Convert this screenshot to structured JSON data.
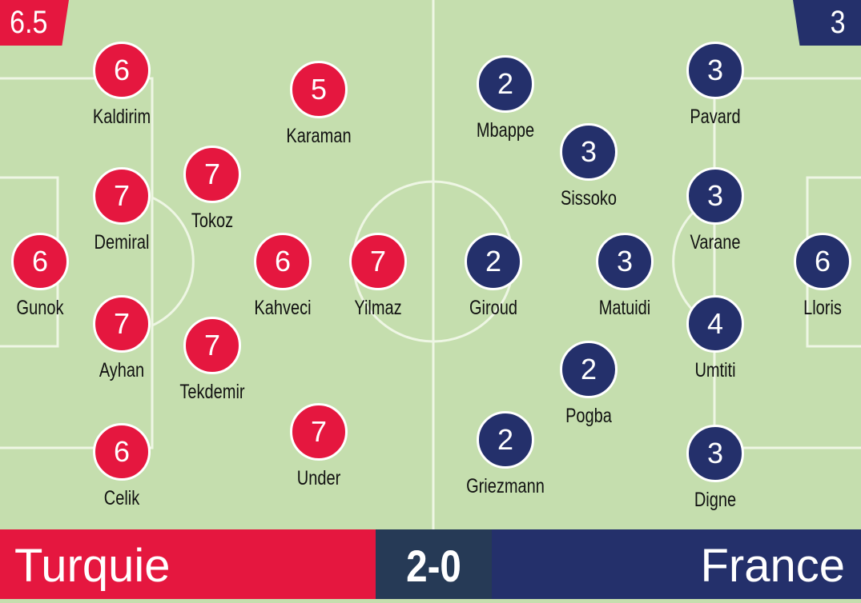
{
  "colors": {
    "pitch": "#c5deae",
    "home": "#e5173f",
    "away": "#24306b",
    "score_bg": "#263a56",
    "lines": "#eef6e4"
  },
  "home": {
    "name": "Turquie",
    "rating": "6.5",
    "players": [
      {
        "name": "Kaldirim",
        "rating": "6"
      },
      {
        "name": "Karaman",
        "rating": "5"
      },
      {
        "name": "Tokoz",
        "rating": "7"
      },
      {
        "name": "Demiral",
        "rating": "7"
      },
      {
        "name": "Gunok",
        "rating": "6"
      },
      {
        "name": "Kahveci",
        "rating": "6"
      },
      {
        "name": "Yilmaz",
        "rating": "7"
      },
      {
        "name": "Ayhan",
        "rating": "7"
      },
      {
        "name": "Tekdemir",
        "rating": "7"
      },
      {
        "name": "Under",
        "rating": "7"
      },
      {
        "name": "Celik",
        "rating": "6"
      }
    ]
  },
  "away": {
    "name": "France",
    "rating": "3",
    "players": [
      {
        "name": "Mbappe",
        "rating": "2"
      },
      {
        "name": "Sissoko",
        "rating": "3"
      },
      {
        "name": "Giroud",
        "rating": "2"
      },
      {
        "name": "Matuidi",
        "rating": "3"
      },
      {
        "name": "Pogba",
        "rating": "2"
      },
      {
        "name": "Griezmann",
        "rating": "2"
      },
      {
        "name": "Pavard",
        "rating": "3"
      },
      {
        "name": "Varane",
        "rating": "3"
      },
      {
        "name": "Lloris",
        "rating": "6"
      },
      {
        "name": "Umtiti",
        "rating": "4"
      },
      {
        "name": "Digne",
        "rating": "3"
      }
    ]
  },
  "score": "2-0"
}
